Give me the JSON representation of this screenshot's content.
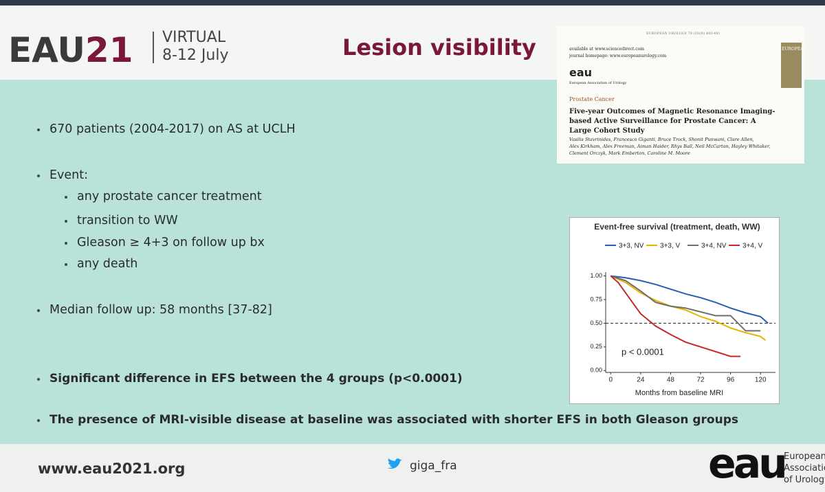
{
  "header": {
    "logo_text": "EAU",
    "logo_number": "21",
    "event": "VIRTUAL",
    "dates": "8-12 July",
    "title": "Lesion visibility"
  },
  "article": {
    "journal_ref": "EUROPEAN UROLOGY 79 (2020) 483-491",
    "availability": "available at www.sciencedirect.com",
    "homepage": "journal homepage: www.europeanurology.com",
    "publisher_logo": "eau",
    "publisher": "European Association of Urology",
    "cover": "EUROPEAN",
    "section": "Prostate Cancer",
    "title": "Five-year Outcomes of Magnetic Resonance Imaging-based Active Surveillance for Prostate Cancer: A Large Cohort Study",
    "authors": [
      "Vasilis Stavrinides, Francesco Giganti, Bruce Trock, Shonit Punwani, Clare Allen,",
      "Alex Kirkham, Alex Freeman, Aiman Haider, Rhys Ball, Neil McCartan, Hayley Whitaker,",
      "Clement Orczyk, Mark Emberton, Caroline M. Moore"
    ]
  },
  "bullets": [
    {
      "text": "670 patients (2004-2017) on AS at UCLH",
      "level": 1
    },
    {
      "text": "Event:",
      "level": 1
    },
    {
      "text": "any prostate cancer treatment",
      "level": 2
    },
    {
      "text": "transition to WW",
      "level": 2
    },
    {
      "text": "Gleason ≥ 4+3 on follow up bx",
      "level": 2
    },
    {
      "text": "any death",
      "level": 2
    },
    {
      "text": "Median follow up: 58 months [37-82]",
      "level": 1
    },
    {
      "text": "Significant difference in EFS between the 4 groups (p<0.0001)",
      "level": 1,
      "bold": true
    },
    {
      "text": "The presence of MRI-visible disease at baseline was associated with shorter EFS in both Gleason groups",
      "level": 1,
      "bold": true
    }
  ],
  "chart_data": {
    "type": "line",
    "title": "Event-free survival (treatment, death, WW)",
    "x_label": "Months from baseline MRI",
    "annotation": "p < 0.0001",
    "xlim": [
      -4,
      132
    ],
    "ylim": [
      -0.02,
      1.04
    ],
    "xticks": [
      0,
      24,
      48,
      72,
      96,
      120
    ],
    "yticks": [
      {
        "value": 0,
        "label": "0.00"
      },
      {
        "value": 0.25,
        "label": "0.25"
      },
      {
        "value": 0.5,
        "label": "0.50"
      },
      {
        "value": 0.75,
        "label": "0.75"
      },
      {
        "value": 1,
        "label": "1.00"
      }
    ],
    "median_line": 0.5,
    "series": [
      {
        "name": "3+3, NV",
        "color": "#2a5db0",
        "x": [
          0,
          12,
          24,
          36,
          48,
          60,
          72,
          84,
          96,
          108,
          120,
          126
        ],
        "values": [
          1,
          0.98,
          0.95,
          0.91,
          0.86,
          0.81,
          0.77,
          0.72,
          0.66,
          0.61,
          0.57,
          0.5
        ]
      },
      {
        "name": "3+3, V",
        "color": "#e8b400",
        "x": [
          0,
          12,
          24,
          36,
          48,
          60,
          72,
          84,
          96,
          108,
          120,
          124
        ],
        "values": [
          1,
          0.93,
          0.82,
          0.74,
          0.68,
          0.64,
          0.57,
          0.52,
          0.45,
          0.4,
          0.36,
          0.32
        ]
      },
      {
        "name": "3+4, NV",
        "color": "#6e6e6e",
        "x": [
          0,
          12,
          24,
          36,
          48,
          60,
          72,
          84,
          96,
          108,
          120
        ],
        "values": [
          1,
          0.95,
          0.84,
          0.72,
          0.68,
          0.66,
          0.62,
          0.58,
          0.58,
          0.42,
          0.42
        ]
      },
      {
        "name": "3+4, V",
        "color": "#c62828",
        "x": [
          0,
          6,
          12,
          24,
          36,
          48,
          60,
          72,
          84,
          96,
          104
        ],
        "values": [
          1,
          0.93,
          0.82,
          0.6,
          0.47,
          0.38,
          0.3,
          0.25,
          0.2,
          0.15,
          0.15
        ]
      }
    ]
  },
  "footer": {
    "url": "www.eau2021.org",
    "handle": "giga_fra",
    "logo": "eau",
    "org": [
      "European",
      "Association",
      "of Urology"
    ]
  }
}
